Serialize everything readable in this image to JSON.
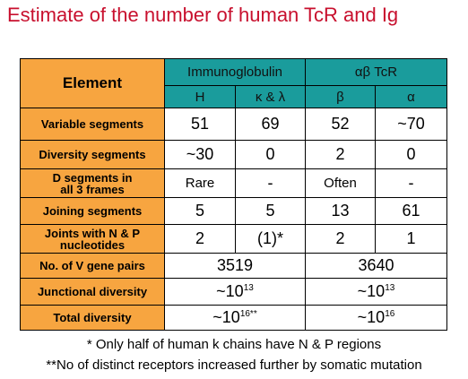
{
  "header": {
    "title": "Estimate of the number of human TcR and Ig"
  },
  "table": {
    "corner": "Element",
    "groups": [
      "Immunoglobulin",
      "αβ TcR"
    ],
    "subcols": [
      "H",
      "κ & λ",
      "β",
      "α"
    ],
    "rows": [
      {
        "label": "Variable segments",
        "cells": [
          "51",
          "69",
          "52",
          "~70"
        ]
      },
      {
        "label": "Diversity segments",
        "cells": [
          "~30",
          "0",
          "2",
          "0"
        ]
      },
      {
        "label": "D segments in\nall 3 frames",
        "cells": [
          "Rare",
          "-",
          "Often",
          "-"
        ]
      },
      {
        "label": "Joining segments",
        "cells": [
          "5",
          "5",
          "13",
          "61"
        ]
      },
      {
        "label": "Joints with N & P\nnucleotides",
        "cells": [
          "2",
          "(1)*",
          "2",
          "1"
        ]
      },
      {
        "label": "No. of V gene pairs",
        "cells": [
          "3519",
          "3640"
        ]
      },
      {
        "label": "Junctional diversity",
        "cells": [
          {
            "base": "~10",
            "sup": "13"
          },
          {
            "base": "~10",
            "sup": "13"
          }
        ]
      },
      {
        "label": "Total diversity",
        "cells": [
          {
            "base": "~10",
            "sup": "16**"
          },
          {
            "base": "~10",
            "sup": "16"
          }
        ]
      }
    ]
  },
  "footnotes": [
    "* Only half of human k chains have N & P regions",
    "**No of distinct receptors increased further by somatic mutation"
  ]
}
